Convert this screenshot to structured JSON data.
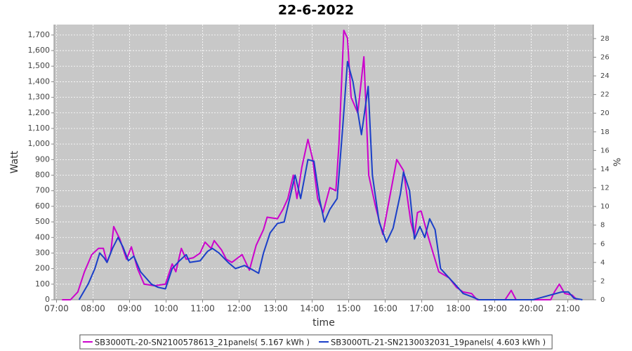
{
  "chart_data": {
    "type": "line",
    "title": "22-6-2022",
    "xlabel": "time",
    "ylabel": "Watt",
    "y2label": "%",
    "xlim": [
      "06:56",
      "21:42"
    ],
    "xticks": [
      "07:00",
      "08:00",
      "09:00",
      "10:00",
      "11:00",
      "12:00",
      "13:00",
      "14:00",
      "15:00",
      "16:00",
      "17:00",
      "18:00",
      "19:00",
      "20:00",
      "21:00"
    ],
    "ylim": [
      0,
      1767
    ],
    "yticks": [
      0,
      100,
      200,
      300,
      400,
      500,
      600,
      700,
      800,
      900,
      {
        "value": 1000,
        "label": "1,000"
      },
      {
        "value": 1100,
        "label": "1,100"
      },
      {
        "value": 1200,
        "label": "1,200"
      },
      {
        "value": 1300,
        "label": "1,300"
      },
      {
        "value": 1400,
        "label": "1,400"
      },
      {
        "value": 1500,
        "label": "1,500"
      },
      {
        "value": 1600,
        "label": "1,600"
      },
      {
        "value": 1700,
        "label": "1,700"
      }
    ],
    "y2lim": [
      0,
      29.5
    ],
    "y2ticks": [
      0,
      2,
      4,
      6,
      8,
      10,
      12,
      14,
      16,
      18,
      20,
      22,
      24,
      26,
      28
    ],
    "grid": true,
    "legend": "bottom",
    "series": [
      {
        "name": "SB3000TL-20-SN2100578613_21panels( 5.167 kWh )",
        "color": "#cc00cc",
        "x": [
          "07:09",
          "07:23",
          "07:35",
          "07:46",
          "07:58",
          "08:09",
          "08:17",
          "08:23",
          "08:29",
          "08:34",
          "08:44",
          "08:55",
          "09:03",
          "09:13",
          "09:24",
          "09:41",
          "09:59",
          "10:10",
          "10:16",
          "10:25",
          "10:33",
          "10:45",
          "10:56",
          "11:04",
          "11:14",
          "11:19",
          "11:31",
          "11:39",
          "11:48",
          "12:05",
          "12:17",
          "12:28",
          "12:40",
          "12:46",
          "13:03",
          "13:12",
          "13:20",
          "13:29",
          "13:35",
          "13:43",
          "13:53",
          "14:01",
          "14:09",
          "14:18",
          "14:29",
          "14:39",
          "14:44",
          "14:52",
          "14:58",
          "15:04",
          "15:15",
          "15:25",
          "15:33",
          "15:44",
          "15:56",
          "16:07",
          "16:19",
          "16:30",
          "16:42",
          "16:48",
          "16:53",
          "16:59",
          "17:11",
          "17:28",
          "17:45",
          "17:57",
          "18:08",
          "18:22",
          "18:31",
          "19:17",
          "19:27",
          "19:35",
          "20:32",
          "20:38",
          "20:46",
          "20:55",
          "21:07",
          "21:15"
        ],
        "values": [
          0,
          0,
          50,
          180,
          290,
          330,
          330,
          240,
          300,
          470,
          390,
          260,
          340,
          200,
          100,
          90,
          100,
          230,
          180,
          330,
          260,
          270,
          300,
          370,
          330,
          380,
          320,
          260,
          240,
          290,
          190,
          350,
          450,
          530,
          520,
          580,
          650,
          800,
          650,
          850,
          1030,
          900,
          650,
          560,
          720,
          700,
          1000,
          1730,
          1680,
          1300,
          1200,
          1560,
          800,
          600,
          420,
          650,
          900,
          830,
          500,
          410,
          560,
          570,
          400,
          180,
          140,
          80,
          50,
          40,
          0,
          0,
          60,
          0,
          0,
          50,
          100,
          40,
          30,
          0
        ]
      },
      {
        "name": "SB3000TL-21-SN2130032031_19panels( 4.603 kWh )",
        "color": "#1a3fc8",
        "x": [
          "07:37",
          "07:52",
          "08:03",
          "08:11",
          "08:18",
          "08:23",
          "08:32",
          "08:41",
          "08:49",
          "08:58",
          "09:07",
          "09:18",
          "09:36",
          "09:47",
          "09:59",
          "10:10",
          "10:22",
          "10:33",
          "10:39",
          "10:56",
          "11:08",
          "11:16",
          "11:27",
          "11:42",
          "11:54",
          "12:09",
          "12:23",
          "12:32",
          "12:40",
          "12:51",
          "13:03",
          "13:14",
          "13:23",
          "13:32",
          "13:41",
          "13:53",
          "14:03",
          "14:12",
          "14:20",
          "14:29",
          "14:41",
          "14:50",
          "14:58",
          "15:07",
          "15:21",
          "15:32",
          "15:39",
          "15:50",
          "16:02",
          "16:13",
          "16:25",
          "16:30",
          "16:40",
          "16:48",
          "16:57",
          "17:05",
          "17:13",
          "17:22",
          "17:31",
          "17:45",
          "17:57",
          "18:08",
          "18:22",
          "18:34",
          "20:03",
          "20:50",
          "21:01",
          "21:10",
          "21:24"
        ],
        "values": [
          0,
          100,
          200,
          300,
          270,
          240,
          330,
          400,
          340,
          250,
          280,
          180,
          100,
          80,
          70,
          200,
          250,
          290,
          240,
          250,
          310,
          330,
          300,
          240,
          200,
          220,
          190,
          170,
          300,
          430,
          490,
          500,
          650,
          800,
          650,
          900,
          890,
          650,
          500,
          580,
          650,
          1100,
          1530,
          1400,
          1060,
          1370,
          800,
          500,
          370,
          460,
          680,
          820,
          700,
          390,
          470,
          400,
          520,
          450,
          200,
          140,
          90,
          40,
          20,
          0,
          0,
          50,
          50,
          10,
          0
        ]
      }
    ]
  }
}
